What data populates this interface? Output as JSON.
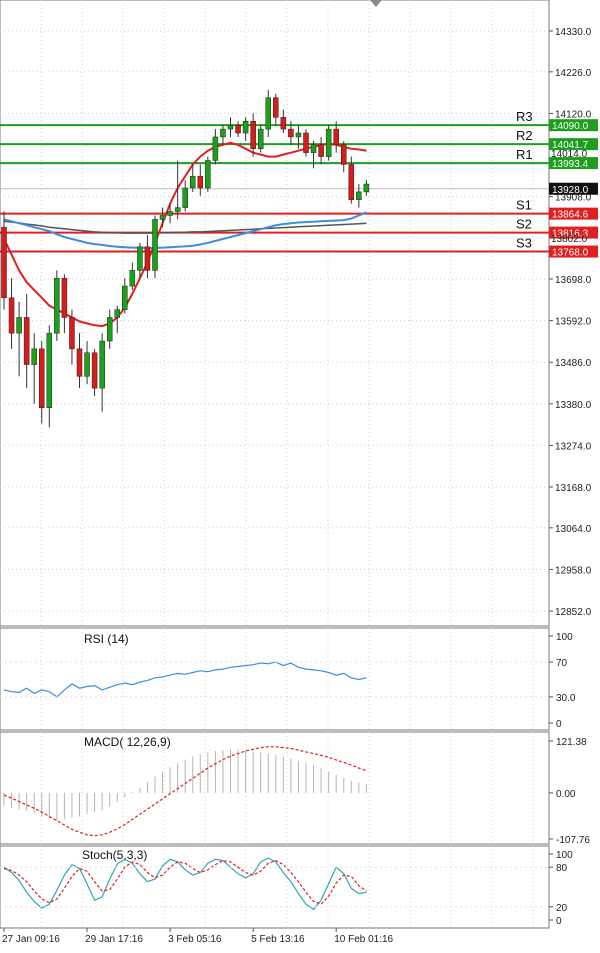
{
  "chart_data": [
    {
      "name": "price",
      "type": "candlestick",
      "title": "",
      "ylim": [
        12800,
        14385
      ],
      "y_ticks": [
        "14330.0",
        "14226.0",
        "14120.0",
        "13908.0",
        "13698.0",
        "13592.0",
        "13486.0",
        "13380.0",
        "13274.0",
        "13168.0",
        "13064.0",
        "12958.0",
        "12852.0"
      ],
      "y_tick_values": [
        14330,
        14226,
        14120,
        13908,
        13698,
        13592,
        13486,
        13380,
        13274,
        13168,
        13064,
        12958,
        12852
      ],
      "current_price": {
        "label": "13928.0",
        "value": 13928
      },
      "levels": [
        {
          "name": "R3",
          "value": 14090,
          "label": "14090.0",
          "kind": "resistance",
          "color": "#1e9e1e"
        },
        {
          "name": "R2",
          "value": 14041.7,
          "label": "14041.7",
          "kind": "resistance",
          "color": "#1e9e1e"
        },
        {
          "name": "R1",
          "value": 13993.4,
          "label": "13993.4",
          "kind": "resistance",
          "color": "#1e9e1e"
        },
        {
          "name": "S1",
          "value": 13864.6,
          "label": "13864.6",
          "kind": "support",
          "color": "#e02020"
        },
        {
          "name": "S2",
          "value": 13816.3,
          "label": "13816.3",
          "kind": "support",
          "color": "#e02020"
        },
        {
          "name": "S3",
          "value": 13768.0,
          "label": "13768.0",
          "kind": "support",
          "color": "#e02020"
        }
      ],
      "partial_labels": {
        "near_r1": "14014.0",
        "near_s2": "13802.0"
      },
      "candles": [
        [
          13830,
          13870,
          13620,
          13650
        ],
        [
          13650,
          13700,
          13520,
          13560
        ],
        [
          13560,
          13640,
          13450,
          13600
        ],
        [
          13600,
          13660,
          13420,
          13480
        ],
        [
          13480,
          13560,
          13380,
          13520
        ],
        [
          13520,
          13540,
          13330,
          13370
        ],
        [
          13370,
          13580,
          13320,
          13560
        ],
        [
          13560,
          13720,
          13540,
          13700
        ],
        [
          13700,
          13710,
          13560,
          13600
        ],
        [
          13600,
          13620,
          13480,
          13520
        ],
        [
          13520,
          13560,
          13420,
          13450
        ],
        [
          13450,
          13540,
          13430,
          13510
        ],
        [
          13510,
          13520,
          13400,
          13420
        ],
        [
          13420,
          13560,
          13360,
          13540
        ],
        [
          13540,
          13620,
          13520,
          13600
        ],
        [
          13600,
          13630,
          13560,
          13620
        ],
        [
          13620,
          13700,
          13610,
          13680
        ],
        [
          13680,
          13740,
          13670,
          13720
        ],
        [
          13720,
          13790,
          13700,
          13780
        ],
        [
          13780,
          13810,
          13700,
          13720
        ],
        [
          13720,
          13860,
          13700,
          13850
        ],
        [
          13850,
          13880,
          13830,
          13860
        ],
        [
          13860,
          13890,
          13840,
          13870
        ],
        [
          13870,
          14000,
          13850,
          13880
        ],
        [
          13880,
          13950,
          13870,
          13930
        ],
        [
          13930,
          13990,
          13920,
          13960
        ],
        [
          13960,
          13990,
          13910,
          13930
        ],
        [
          13930,
          14010,
          13920,
          14000
        ],
        [
          14000,
          14080,
          13990,
          14060
        ],
        [
          14060,
          14090,
          14040,
          14080
        ],
        [
          14080,
          14110,
          14060,
          14090
        ],
        [
          14090,
          14100,
          14060,
          14070
        ],
        [
          14070,
          14110,
          14050,
          14100
        ],
        [
          14100,
          14120,
          14010,
          14030
        ],
        [
          14030,
          14090,
          14020,
          14080
        ],
        [
          14080,
          14180,
          14060,
          14160
        ],
        [
          14160,
          14170,
          14090,
          14110
        ],
        [
          14110,
          14130,
          14070,
          14080
        ],
        [
          14080,
          14100,
          14040,
          14060
        ],
        [
          14060,
          14090,
          14030,
          14070
        ],
        [
          14070,
          14080,
          14010,
          14020
        ],
        [
          14020,
          14050,
          13980,
          14040
        ],
        [
          14040,
          14060,
          13990,
          14010
        ],
        [
          14010,
          14090,
          14000,
          14080
        ],
        [
          14080,
          14100,
          14020,
          14040
        ],
        [
          14040,
          14050,
          13970,
          13990
        ],
        [
          13990,
          14010,
          13890,
          13900
        ],
        [
          13900,
          13940,
          13880,
          13920
        ],
        [
          13920,
          13950,
          13910,
          13940
        ]
      ],
      "ma_red": [
        13800,
        13760,
        13720,
        13690,
        13670,
        13650,
        13630,
        13620,
        13610,
        13600,
        13590,
        13585,
        13580,
        13578,
        13585,
        13600,
        13625,
        13660,
        13700,
        13740,
        13790,
        13840,
        13890,
        13930,
        13960,
        13990,
        14010,
        14025,
        14035,
        14040,
        14045,
        14040,
        14030,
        14020,
        14015,
        14010,
        14010,
        14015,
        14020,
        14025,
        14030,
        14035,
        14040,
        14042,
        14040,
        14035,
        14030,
        14028,
        14025
      ],
      "ma_blue": [
        13850,
        13845,
        13840,
        13835,
        13830,
        13825,
        13820,
        13812,
        13805,
        13800,
        13795,
        13790,
        13787,
        13785,
        13782,
        13780,
        13779,
        13778,
        13778,
        13777,
        13777,
        13778,
        13779,
        13780,
        13781,
        13783,
        13786,
        13790,
        13795,
        13800,
        13805,
        13810,
        13815,
        13820,
        13825,
        13830,
        13835,
        13838,
        13840,
        13842,
        13843,
        13844,
        13845,
        13846,
        13847,
        13848,
        13852,
        13860,
        13868
      ],
      "ma_black": [
        13845,
        13843,
        13841,
        13838,
        13836,
        13833,
        13830,
        13828,
        13826,
        13824,
        13822,
        13820,
        13818,
        13817,
        13816,
        13816,
        13815,
        13815,
        13815,
        13815,
        13815,
        13816,
        13816,
        13817,
        13817,
        13818,
        13818,
        13819,
        13820,
        13821,
        13822,
        13823,
        13824,
        13825,
        13826,
        13827,
        13828,
        13829,
        13830,
        13831,
        13832,
        13833,
        13834,
        13835,
        13836,
        13837,
        13838,
        13839,
        13840
      ]
    },
    {
      "name": "rsi",
      "type": "line",
      "title": "RSI (14)",
      "ylim": [
        0,
        100
      ],
      "y_ticks": [
        "100",
        "70",
        "30.0",
        "0"
      ],
      "y_tick_values": [
        100,
        70,
        30,
        0
      ],
      "values": [
        38,
        36,
        35,
        40,
        34,
        38,
        36,
        30,
        38,
        45,
        40,
        42,
        43,
        38,
        41,
        44,
        46,
        44,
        47,
        49,
        52,
        53,
        55,
        57,
        56,
        58,
        60,
        59,
        61,
        62,
        64,
        65,
        66,
        67,
        69,
        68,
        70,
        66,
        69,
        64,
        62,
        61,
        60,
        58,
        55,
        57,
        52,
        50,
        52
      ]
    },
    {
      "name": "macd",
      "type": "histogram",
      "title": "MACD( 12,26,9)",
      "ylim": [
        -120,
        130
      ],
      "y_ticks": [
        "121.38",
        "0.00",
        "-107.76"
      ],
      "y_tick_values": [
        121.38,
        0,
        -107.76
      ],
      "histogram": [
        -30,
        -35,
        -38,
        -42,
        -48,
        -55,
        -60,
        -65,
        -62,
        -58,
        -55,
        -50,
        -45,
        -40,
        -32,
        -22,
        -10,
        2,
        12,
        25,
        38,
        50,
        60,
        70,
        78,
        85,
        90,
        95,
        98,
        100,
        102,
        103,
        100,
        97,
        95,
        92,
        88,
        85,
        80,
        75,
        70,
        65,
        58,
        50,
        42,
        35,
        28,
        24,
        22
      ],
      "signal": [
        -5,
        -12,
        -20,
        -28,
        -36,
        -45,
        -55,
        -65,
        -75,
        -85,
        -92,
        -98,
        -100,
        -98,
        -92,
        -84,
        -74,
        -62,
        -50,
        -38,
        -26,
        -14,
        -2,
        10,
        22,
        34,
        46,
        58,
        68,
        78,
        86,
        92,
        98,
        102,
        106,
        108,
        108,
        106,
        104,
        100,
        96,
        92,
        88,
        83,
        77,
        71,
        65,
        58,
        52
      ]
    },
    {
      "name": "stoch",
      "type": "line",
      "title": "Stoch(5,3,3)",
      "ylim": [
        0,
        100
      ],
      "y_ticks": [
        "100",
        "80",
        "20",
        "0"
      ],
      "y_tick_values": [
        100,
        80,
        20,
        0
      ],
      "k": [
        80,
        72,
        60,
        42,
        28,
        18,
        24,
        45,
        68,
        84,
        78,
        55,
        30,
        35,
        62,
        85,
        92,
        86,
        70,
        58,
        62,
        82,
        92,
        88,
        76,
        68,
        72,
        86,
        92,
        90,
        80,
        70,
        64,
        70,
        88,
        94,
        88,
        72,
        58,
        40,
        24,
        16,
        30,
        55,
        80,
        70,
        48,
        40,
        42
      ],
      "d": [
        78,
        75,
        68,
        58,
        44,
        32,
        26,
        32,
        48,
        66,
        78,
        74,
        58,
        44,
        46,
        62,
        80,
        88,
        84,
        72,
        64,
        68,
        80,
        88,
        86,
        78,
        72,
        76,
        84,
        90,
        88,
        80,
        72,
        68,
        74,
        86,
        90,
        84,
        72,
        58,
        42,
        28,
        24,
        36,
        56,
        68,
        66,
        52,
        44
      ],
      "x_labels": [
        "27 Jan 09:16",
        "29 Jan 17:16",
        "3 Feb 05:16",
        "5 Feb 13:16",
        "10 Feb 01:16"
      ],
      "x_label_index": [
        0,
        11,
        22,
        33,
        44
      ]
    }
  ],
  "colors": {
    "bull": "#1aa31a",
    "bear": "#d81b1b",
    "ma_red": "#e02020",
    "ma_blue": "#3a8fe0",
    "ma_black": "#555555",
    "rsi": "#3a8fe0",
    "macd_hist": "#b5b5b5",
    "macd_signal": "#e02020",
    "stoch_k": "#2fa7b5",
    "stoch_d": "#e02020"
  }
}
